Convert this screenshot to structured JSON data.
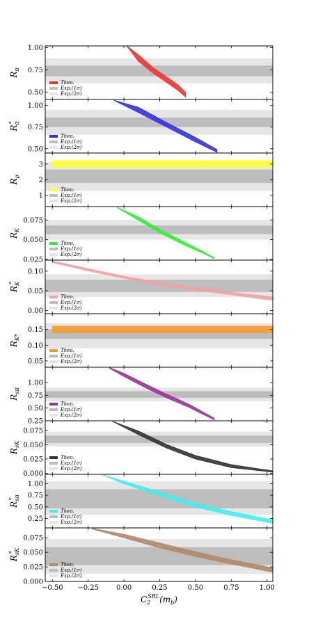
{
  "chart_data": [
    {
      "type": "area",
      "ylabel": "R_π",
      "ylim": [
        0.42,
        1.02
      ],
      "yticks": [
        0.5,
        0.75,
        1.0
      ],
      "ytick_labels": [
        "0.50",
        "0.75",
        "1.00"
      ],
      "exp_1sigma": [
        0.68,
        0.8
      ],
      "exp_2sigma": [
        0.6,
        0.88
      ],
      "color": "#ee3333",
      "band": [
        {
          "x": 0.02,
          "lo": 1.02,
          "hi": 1.02
        },
        {
          "x": 0.1,
          "lo": 0.85,
          "hi": 0.92
        },
        {
          "x": 0.2,
          "lo": 0.72,
          "hi": 0.78
        },
        {
          "x": 0.3,
          "lo": 0.61,
          "hi": 0.67
        },
        {
          "x": 0.38,
          "lo": 0.52,
          "hi": 0.58
        },
        {
          "x": 0.43,
          "lo": 0.45,
          "hi": 0.5
        }
      ],
      "legend": [
        "Theo.",
        "Exp.(1σ)",
        "Exp.(2σ)"
      ]
    },
    {
      "type": "area",
      "ylabel": "R_π^*",
      "ylim": [
        0.45,
        1.07
      ],
      "yticks": [
        0.5,
        0.75,
        1.0
      ],
      "ytick_labels": [
        "0.50",
        "0.75",
        "1.00"
      ],
      "exp_1sigma": [
        0.75,
        0.86
      ],
      "exp_2sigma": [
        0.66,
        0.95
      ],
      "color": "#3333dd",
      "band": [
        {
          "x": -0.07,
          "lo": 1.06,
          "hi": 1.06
        },
        {
          "x": 0.1,
          "lo": 0.92,
          "hi": 0.98
        },
        {
          "x": 0.3,
          "lo": 0.75,
          "hi": 0.8
        },
        {
          "x": 0.5,
          "lo": 0.58,
          "hi": 0.63
        },
        {
          "x": 0.65,
          "lo": 0.46,
          "hi": 0.49
        }
      ],
      "legend": [
        "Theo.",
        "Exp.(1σ)",
        "Exp.(2σ)"
      ]
    },
    {
      "type": "area",
      "ylabel": "R_ρ",
      "ylim": [
        0.3,
        3.7
      ],
      "yticks": [
        1,
        2,
        3
      ],
      "ytick_labels": [
        "1",
        "2",
        "3"
      ],
      "exp_1sigma": [
        1.8,
        2.65
      ],
      "exp_2sigma": [
        1.3,
        3.1
      ],
      "color": "#ffff33",
      "band": [
        {
          "x": -0.5,
          "lo": 2.8,
          "hi": 3.2
        },
        {
          "x": 1.04,
          "lo": 2.8,
          "hi": 3.2
        }
      ],
      "legend": [
        "Theo.",
        "Exp.(1σ)",
        "Exp.(2σ)"
      ]
    },
    {
      "type": "area",
      "ylabel": "R_K",
      "ylim": [
        0.024,
        0.092
      ],
      "yticks": [
        0.025,
        0.05,
        0.075
      ],
      "ytick_labels": [
        "0.025",
        "0.050",
        "0.075"
      ],
      "exp_1sigma": [
        0.057,
        0.068
      ],
      "exp_2sigma": [
        0.05,
        0.075
      ],
      "color": "#33ee33",
      "band": [
        {
          "x": -0.05,
          "lo": 0.091,
          "hi": 0.091
        },
        {
          "x": 0.1,
          "lo": 0.075,
          "hi": 0.079
        },
        {
          "x": 0.25,
          "lo": 0.059,
          "hi": 0.063
        },
        {
          "x": 0.4,
          "lo": 0.045,
          "hi": 0.049
        },
        {
          "x": 0.55,
          "lo": 0.033,
          "hi": 0.035
        },
        {
          "x": 0.63,
          "lo": 0.026,
          "hi": 0.027
        }
      ],
      "legend": [
        "Theo.",
        "Exp.(1σ)",
        "Exp.(2σ)"
      ]
    },
    {
      "type": "area",
      "ylabel": "R_K^*",
      "ylim": [
        -0.008,
        0.128
      ],
      "yticks": [
        0.0,
        0.05,
        0.1
      ],
      "ytick_labels": [
        "0.00",
        "0.05",
        "0.10"
      ],
      "exp_1sigma": [
        0.047,
        0.078
      ],
      "exp_2sigma": [
        0.034,
        0.092
      ],
      "color": "#f4a0a0",
      "band": [
        {
          "x": -0.5,
          "lo": 0.122,
          "hi": 0.126
        },
        {
          "x": -0.25,
          "lo": 0.101,
          "hi": 0.106
        },
        {
          "x": 0.0,
          "lo": 0.082,
          "hi": 0.087
        },
        {
          "x": 0.25,
          "lo": 0.066,
          "hi": 0.071
        },
        {
          "x": 0.5,
          "lo": 0.052,
          "hi": 0.058
        },
        {
          "x": 0.75,
          "lo": 0.04,
          "hi": 0.046
        },
        {
          "x": 1.04,
          "lo": 0.026,
          "hi": 0.034
        }
      ],
      "legend": [
        "Theo.",
        "Exp.(1σ)",
        "Exp.(2σ)"
      ]
    },
    {
      "type": "area",
      "ylabel": "R_K*",
      "ylim": [
        0.03,
        0.2
      ],
      "yticks": [
        0.05,
        0.1,
        0.15
      ],
      "ytick_labels": [
        "0.05",
        "0.10",
        "0.15"
      ],
      "exp_1sigma": [
        0.12,
        0.15
      ],
      "exp_2sigma": [
        0.09,
        0.17
      ],
      "color": "#f59a30",
      "band": [
        {
          "x": -0.5,
          "lo": 0.14,
          "hi": 0.16
        },
        {
          "x": 1.04,
          "lo": 0.14,
          "hi": 0.16
        }
      ],
      "legend": [
        "Theo.",
        "Exp.(1σ)",
        "Exp.(2σ)"
      ]
    },
    {
      "type": "area",
      "ylabel": "R_sπ",
      "ylim": [
        0.25,
        1.3
      ],
      "yticks": [
        0.25,
        0.5,
        0.75,
        1.0
      ],
      "ytick_labels": [
        "0.25",
        "0.50",
        "0.75",
        "1.00"
      ],
      "exp_1sigma": [
        0.7,
        0.83
      ],
      "exp_2sigma": [
        0.63,
        0.9
      ],
      "color": "#993399",
      "band": [
        {
          "x": -0.1,
          "lo": 1.28,
          "hi": 1.29
        },
        {
          "x": 0.0,
          "lo": 1.12,
          "hi": 1.18
        },
        {
          "x": 0.15,
          "lo": 0.9,
          "hi": 0.97
        },
        {
          "x": 0.3,
          "lo": 0.7,
          "hi": 0.77
        },
        {
          "x": 0.45,
          "lo": 0.52,
          "hi": 0.58
        },
        {
          "x": 0.63,
          "lo": 0.27,
          "hi": 0.3
        }
      ],
      "legend": [
        "Theo.",
        "Exp.(1σ)",
        "Exp.(2σ)"
      ]
    },
    {
      "type": "area",
      "ylabel": "R_sK",
      "ylim": [
        -0.002,
        0.092
      ],
      "yticks": [
        0.0,
        0.025,
        0.05,
        0.075
      ],
      "ytick_labels": [
        "0.000",
        "0.025",
        "0.050",
        "0.075"
      ],
      "exp_1sigma": [
        0.053,
        0.066
      ],
      "exp_2sigma": [
        0.047,
        0.073
      ],
      "color": "#333333",
      "band": [
        {
          "x": -0.08,
          "lo": 0.091,
          "hi": 0.091
        },
        {
          "x": 0.1,
          "lo": 0.068,
          "hi": 0.074
        },
        {
          "x": 0.3,
          "lo": 0.044,
          "hi": 0.05
        },
        {
          "x": 0.5,
          "lo": 0.025,
          "hi": 0.031
        },
        {
          "x": 0.75,
          "lo": 0.01,
          "hi": 0.015
        },
        {
          "x": 1.04,
          "lo": 0.002,
          "hi": 0.004
        }
      ],
      "legend": [
        "Theo.",
        "Exp.(1σ)",
        "Exp.(2σ)"
      ]
    },
    {
      "type": "area",
      "ylabel": "R_sπ^*",
      "ylim": [
        0.05,
        1.2
      ],
      "yticks": [
        0.25,
        0.5,
        0.75,
        1.0
      ],
      "ytick_labels": [
        "0.25",
        "0.50",
        "0.75",
        "1.00"
      ],
      "exp_1sigma": [
        0.47,
        0.88
      ],
      "exp_2sigma": [
        0.33,
        1.05
      ],
      "color": "#44eeee",
      "band": [
        {
          "x": -0.15,
          "lo": 1.19,
          "hi": 1.19
        },
        {
          "x": 0.0,
          "lo": 1.0,
          "hi": 1.05
        },
        {
          "x": 0.25,
          "lo": 0.74,
          "hi": 0.82
        },
        {
          "x": 0.5,
          "lo": 0.5,
          "hi": 0.58
        },
        {
          "x": 0.75,
          "lo": 0.32,
          "hi": 0.4
        },
        {
          "x": 1.04,
          "lo": 0.15,
          "hi": 0.22
        }
      ],
      "legend": [
        "Theo.",
        "Exp.(1σ)",
        "Exp.(2σ)"
      ]
    },
    {
      "type": "area",
      "ylabel": "R_sK^*",
      "ylim": [
        0.0,
        0.092
      ],
      "yticks": [
        0.0,
        0.025,
        0.05,
        0.075
      ],
      "ytick_labels": [
        "0.000",
        "0.025",
        "0.050",
        "0.075"
      ],
      "exp_1sigma": [
        0.028,
        0.059
      ],
      "exp_2sigma": [
        0.013,
        0.073
      ],
      "color": "#b08a6a",
      "band": [
        {
          "x": -0.22,
          "lo": 0.09,
          "hi": 0.091
        },
        {
          "x": 0.0,
          "lo": 0.075,
          "hi": 0.081
        },
        {
          "x": 0.25,
          "lo": 0.058,
          "hi": 0.066
        },
        {
          "x": 0.5,
          "lo": 0.043,
          "hi": 0.051
        },
        {
          "x": 0.75,
          "lo": 0.03,
          "hi": 0.037
        },
        {
          "x": 1.04,
          "lo": 0.016,
          "hi": 0.023
        }
      ],
      "legend": [
        "Theo.",
        "Exp.(1σ)",
        "Exp.(2σ)"
      ]
    }
  ],
  "xaxis": {
    "label": "C_2^{SRL}(m_b)",
    "xlim": [
      -0.55,
      1.04
    ],
    "ticks": [
      -0.5,
      -0.25,
      0.0,
      0.25,
      0.5,
      0.75,
      1.0
    ],
    "tick_labels": [
      "−0.50",
      "−0.25",
      "0.00",
      "0.25",
      "0.50",
      "0.75",
      "1.00"
    ]
  },
  "colors": {
    "exp_1sigma": "#bdbdbd",
    "exp_2sigma": "#e6e6e6"
  }
}
